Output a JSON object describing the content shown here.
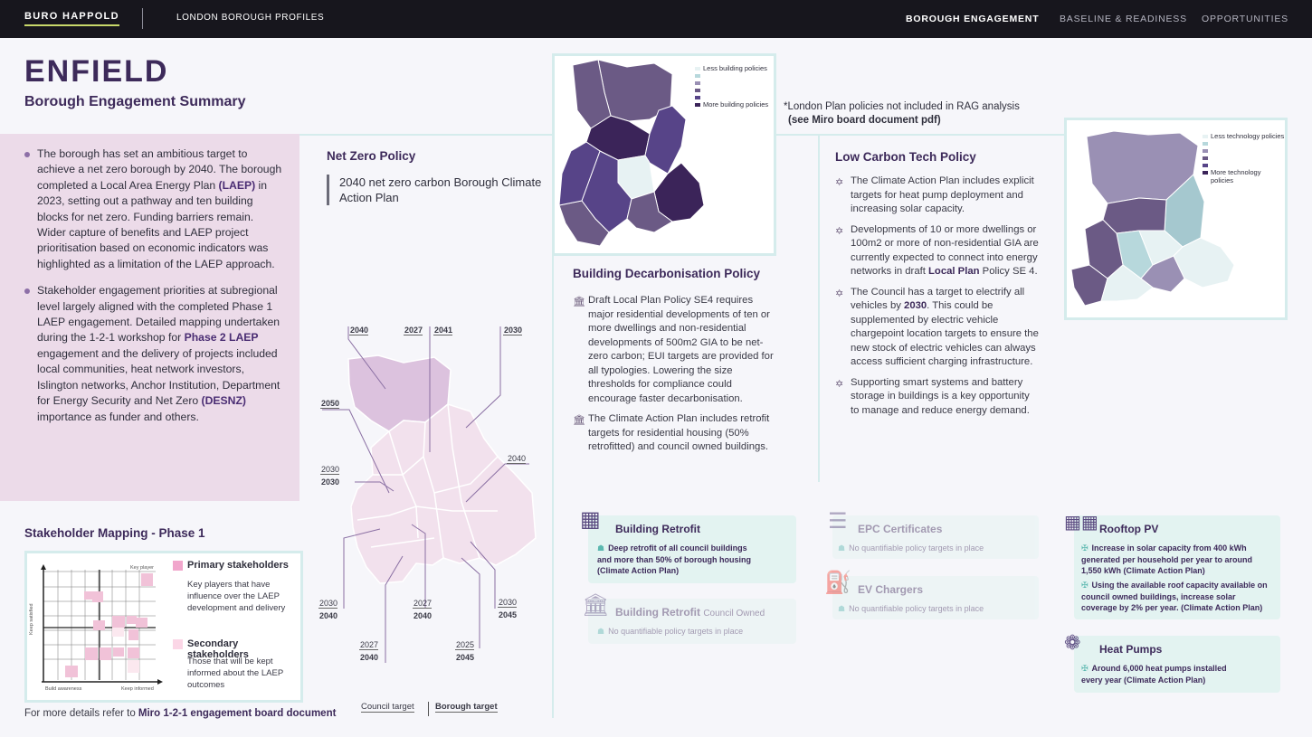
{
  "header": {
    "logo": "BURO HAPPOLD",
    "app_title": "LONDON BOROUGH PROFILES",
    "nav": [
      "BOROUGH ENGAGEMENT",
      "BASELINE & READINESS",
      "OPPORTUNITIES"
    ]
  },
  "page": {
    "borough": "ENFIELD",
    "subtitle": "Borough Engagement Summary"
  },
  "summary": {
    "p1_a": "The borough has set an ambitious target to achieve a net zero borough by 2040. The borough completed a Local Area Energy Plan ",
    "p1_b": "(LAEP)",
    "p1_c": " in 2023, setting out a pathway and ten building blocks for net zero. Funding barriers remain. Wider capture of benefits and LAEP project prioritisation based on economic indicators was highlighted as a limitation of the LAEP approach.",
    "p2_a": "Stakeholder engagement priorities at subregional level largely aligned with the completed Phase 1 LAEP engagement. Detailed mapping undertaken during the 1-2-1 workshop for ",
    "p2_b": "Phase 2 LAEP",
    "p2_c": " engagement and the delivery of projects included local communities, heat network investors, Islington networks, Anchor Institution, Department for Energy Security and Net Zero ",
    "p2_d": "(DESNZ)",
    "p2_e": " importance as funder and others."
  },
  "stakeholder": {
    "title": "Stakeholder Mapping - Phase 1",
    "primary_label": "Primary stakeholders",
    "primary_desc": "Key players that have influence over the LAEP development and delivery",
    "secondary_label": "Secondary stakeholders",
    "secondary_desc": "Those that will be kept informed about the LAEP outcomes",
    "axis_y": "Keep satisfied",
    "axis_x_left": "Build awareness",
    "axis_x_right": "Keep informed",
    "corner": "Key player",
    "footer_a": "For more details refer to ",
    "footer_b": "Miro 1-2-1 engagement board document"
  },
  "net_zero": {
    "title": "Net Zero Policy",
    "text": "2040 net zero carbon Borough Climate Action Plan"
  },
  "map_targets": {
    "labels": [
      "2040",
      "2027",
      "2041",
      "2030",
      "2050",
      "2030",
      "2030",
      "2040",
      "2030",
      "2040",
      "2027",
      "2040",
      "2030",
      "2045",
      "2027",
      "2040",
      "2025",
      "2045"
    ],
    "legend_council": "Council target",
    "legend_borough": "Borough target"
  },
  "building_map": {
    "legend_low": "Less building policies",
    "legend_high": "More building policies"
  },
  "note": {
    "line1": "*London Plan policies not included in RAG analysis",
    "line2": "(see Miro board document pdf)"
  },
  "building_decarb": {
    "title": "Building Decarbonisation Policy",
    "item1": "Draft Local Plan Policy SE4 requires major residential developments of ten or more dwellings and non-residential developments of 500m2 GIA to be net-zero carbon; EUI targets are provided for all typologies. Lowering the size thresholds for compliance could encourage faster decarbonisation.",
    "item2": "The Climate Action Plan includes retrofit targets for residential housing (50% retrofitted) and council owned buildings."
  },
  "low_carbon": {
    "title": "Low Carbon Tech Policy",
    "item1": "The Climate Action Plan includes explicit targets for heat pump deployment and increasing solar capacity.",
    "item2_a": "Developments of 10 or more dwellings or 100m2 or more of non-residential GIA are currently expected to connect into energy networks in draft ",
    "item2_b": "Local Plan",
    "item2_c": " Policy SE 4.",
    "item3_a": "The Council has a target to electrify all vehicles by ",
    "item3_b": "2030",
    "item3_c": ". This could be supplemented by electric vehicle chargepoint location targets to ensure the new stock of electric vehicles can always access sufficient charging infrastructure.",
    "item4": "Supporting smart systems and battery storage in buildings is a key opportunity to manage and reduce energy demand."
  },
  "tech_map": {
    "legend_low": "Less technology policies",
    "legend_high": "More technology policies"
  },
  "cards": {
    "retrofit": {
      "title": "Building Retrofit",
      "text": "Deep retrofit of all council buildings and more than 50% of borough housing (Climate Action Plan)"
    },
    "retrofit_council": {
      "title": "Building Retrofit",
      "title_suffix": "Council Owned",
      "text": "No quantifiable policy targets in place"
    },
    "epc": {
      "title": "EPC Certificates",
      "text": "No quantifiable policy targets in place"
    },
    "ev": {
      "title": "EV Chargers",
      "text": "No quantifiable policy targets in place"
    },
    "pv": {
      "title": "Rooftop PV",
      "text1": "Increase in solar capacity from 400 kWh generated per household per year to around 1,550 kWh (Climate Action Plan)",
      "text2": "Using the available roof capacity available on council owned buildings, increase solar coverage by 2% per year. (Climate Action Plan)"
    },
    "hp": {
      "title": "Heat Pumps",
      "text": "Around 6,000 heat pumps installed every year (Climate Action Plan)"
    }
  },
  "colors": {
    "primary": "#3d2a5a",
    "summary_bg": "#ecdbe9",
    "card_bg": "#e3f3f1",
    "accent": "#c8d86a"
  }
}
